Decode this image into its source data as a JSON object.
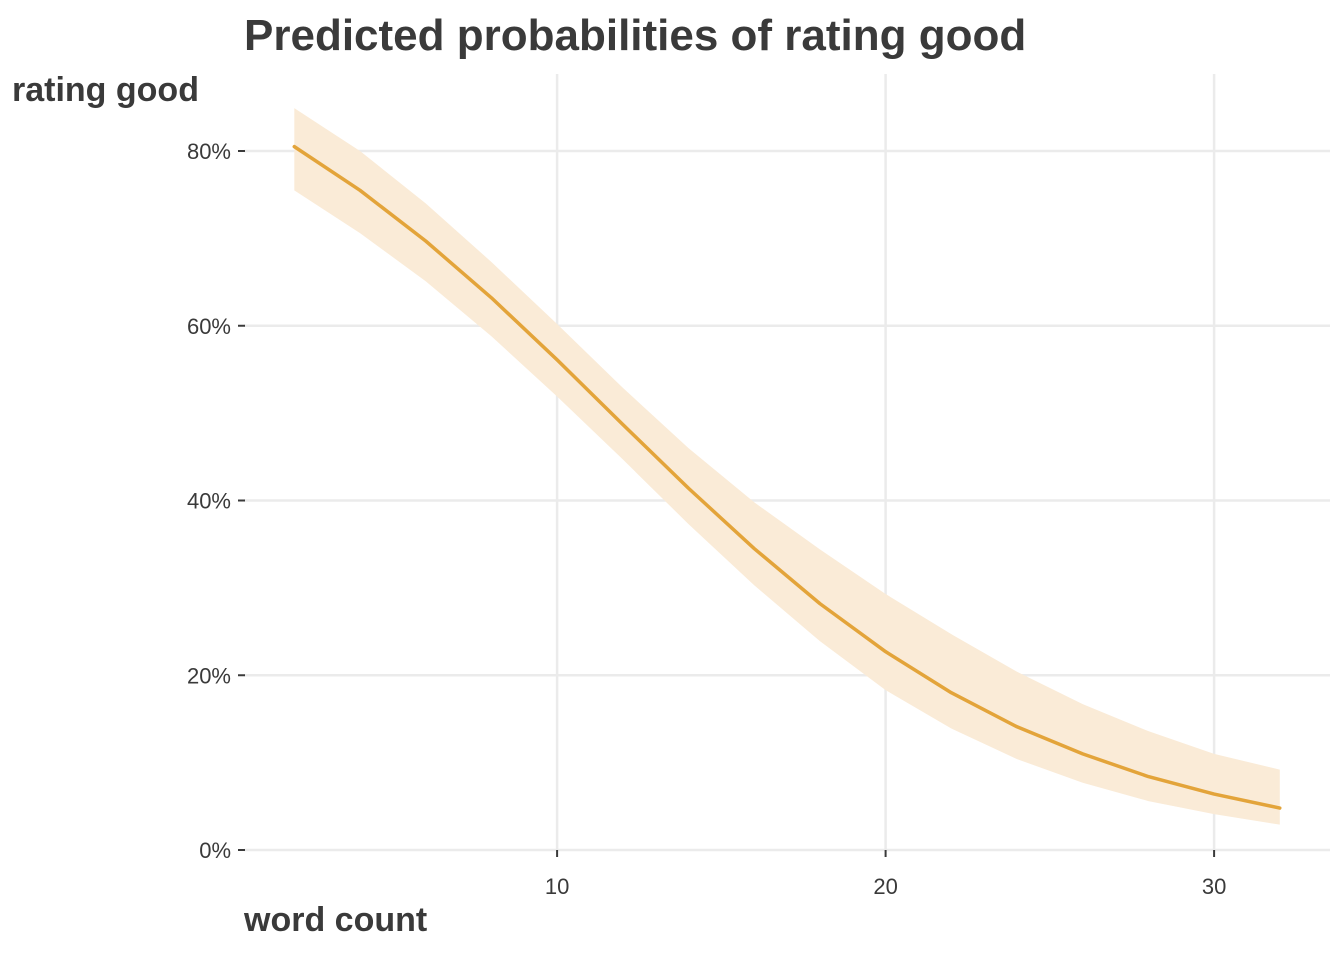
{
  "chart_data": {
    "type": "line",
    "title": "Predicted probabilities of rating good",
    "xlabel": "word count",
    "ylabel": "rating good",
    "xlim": [
      0,
      35
    ],
    "ylim": [
      0,
      0.8
    ],
    "x_ticks": [
      10,
      20,
      30
    ],
    "y_ticks": [
      0,
      0.2,
      0.4,
      0.6,
      0.8
    ],
    "y_tick_labels": [
      "0%",
      "20%",
      "40%",
      "60%",
      "80%"
    ],
    "x_tick_labels": [
      "10",
      "20",
      "30"
    ],
    "grid": true,
    "legend": "none",
    "line_color": "#E3A43A",
    "band_color": "#FAEBD7",
    "series": [
      {
        "x": [
          2,
          4,
          6,
          8,
          10,
          12,
          14,
          16,
          18,
          20,
          22,
          24,
          26,
          28,
          30,
          32
        ],
        "values": [
          0.805,
          0.755,
          0.697,
          0.632,
          0.561,
          0.487,
          0.414,
          0.345,
          0.282,
          0.227,
          0.18,
          0.141,
          0.11,
          0.084,
          0.064,
          0.048
        ],
        "lower": [
          0.755,
          0.706,
          0.651,
          0.588,
          0.519,
          0.447,
          0.373,
          0.303,
          0.239,
          0.183,
          0.139,
          0.104,
          0.077,
          0.056,
          0.041,
          0.029
        ],
        "upper": [
          0.849,
          0.8,
          0.74,
          0.673,
          0.602,
          0.529,
          0.46,
          0.398,
          0.344,
          0.293,
          0.247,
          0.204,
          0.167,
          0.136,
          0.11,
          0.092
        ]
      }
    ]
  }
}
